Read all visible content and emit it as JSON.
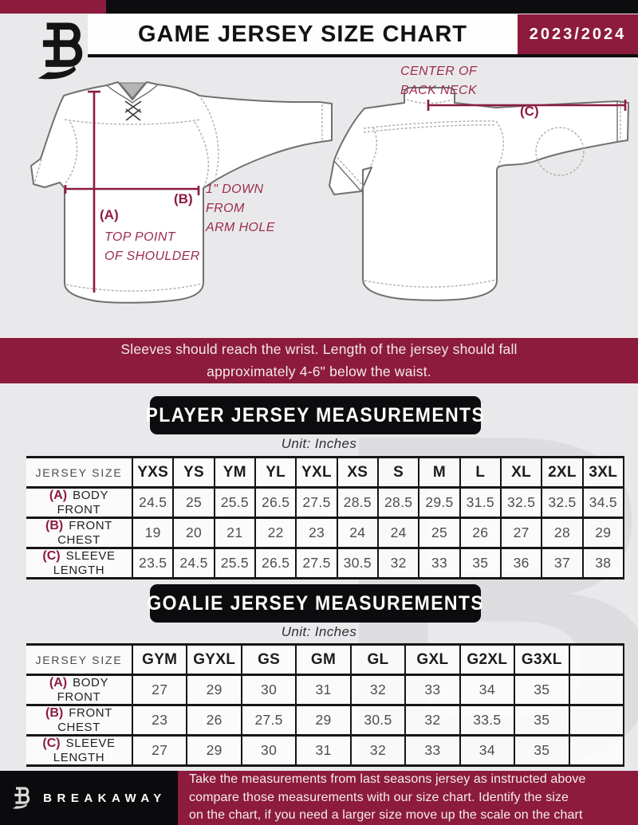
{
  "header": {
    "title": "GAME JERSEY SIZE CHART",
    "season": "2023/2024"
  },
  "diagram": {
    "front": {
      "marker_a": "(A)",
      "note_a": "TOP POINT\nOF SHOULDER",
      "marker_b": "(B)",
      "note_b": "1\" DOWN\nFROM\nARM HOLE"
    },
    "back": {
      "marker_c": "(C)",
      "note_c": "CENTER OF\nBACK NECK"
    }
  },
  "banner": {
    "text": "Sleeves should reach the wrist. Length of the jersey should fall\napproximately 4-6\" below the waist."
  },
  "player_table": {
    "title": "PLAYER JERSEY MEASUREMENTS",
    "unit": "Unit: Inches",
    "corner_label": "JERSEY SIZE",
    "sizes": [
      "YXS",
      "YS",
      "YM",
      "YL",
      "YXL",
      "XS",
      "S",
      "M",
      "L",
      "XL",
      "2XL",
      "3XL"
    ],
    "rows": [
      {
        "key": "(A)",
        "label": "BODY FRONT",
        "values": [
          "24.5",
          "25",
          "25.5",
          "26.5",
          "27.5",
          "28.5",
          "28.5",
          "29.5",
          "31.5",
          "32.5",
          "32.5",
          "34.5"
        ]
      },
      {
        "key": "(B)",
        "label": "FRONT CHEST",
        "values": [
          "19",
          "20",
          "21",
          "22",
          "23",
          "24",
          "24",
          "25",
          "26",
          "27",
          "28",
          "29"
        ]
      },
      {
        "key": "(C)",
        "label": "SLEEVE LENGTH",
        "values": [
          "23.5",
          "24.5",
          "25.5",
          "26.5",
          "27.5",
          "30.5",
          "32",
          "33",
          "35",
          "36",
          "37",
          "38"
        ]
      }
    ]
  },
  "goalie_table": {
    "title": "GOALIE JERSEY MEASUREMENTS",
    "unit": "Unit: Inches",
    "corner_label": "JERSEY SIZE",
    "sizes": [
      "GYM",
      "GYXL",
      "GS",
      "GM",
      "GL",
      "GXL",
      "G2XL",
      "G3XL",
      ""
    ],
    "rows": [
      {
        "key": "(A)",
        "label": "BODY FRONT",
        "values": [
          "27",
          "29",
          "30",
          "31",
          "32",
          "33",
          "34",
          "35",
          ""
        ]
      },
      {
        "key": "(B)",
        "label": "FRONT CHEST",
        "values": [
          "23",
          "26",
          "27.5",
          "29",
          "30.5",
          "32",
          "33.5",
          "35",
          ""
        ]
      },
      {
        "key": "(C)",
        "label": "SLEEVE LENGTH",
        "values": [
          "27",
          "29",
          "30",
          "31",
          "32",
          "33",
          "34",
          "35",
          ""
        ]
      }
    ]
  },
  "footer": {
    "brand": "BREAKAWAY",
    "note": "Take the measurements from last seasons jersey as instructed above\ncompare those measurements  with our size chart. Identify the size\non the chart, if you need a larger size move up the scale on the chart"
  },
  "watermark": "B",
  "colors": {
    "maroon": "#8d1b3d",
    "black": "#0d0d0f",
    "annotation": "#9c2c4f",
    "background": "#e9e9eb"
  }
}
